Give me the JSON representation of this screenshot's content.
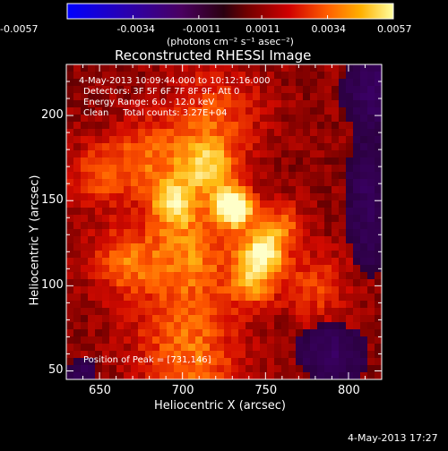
{
  "colorbar": {
    "tick_labels": [
      "-0.0057",
      "-0.0034",
      "-0.0011",
      "0.0011",
      "0.0034",
      "0.0057"
    ],
    "unit_label": "(photons cm⁻² s⁻¹ asec⁻²)",
    "range": [
      -0.0057,
      0.0057
    ]
  },
  "plot": {
    "title": "Reconstructed RHESSI Image",
    "xlabel": "Heliocentric X (arcsec)",
    "ylabel": "Heliocentric Y (arcsec)",
    "x_range": [
      630,
      820
    ],
    "y_range": [
      45,
      230
    ],
    "x_ticks": [
      "650",
      "700",
      "750",
      "800"
    ],
    "y_ticks": [
      "50",
      "100",
      "150",
      "200"
    ],
    "overlay_lines": [
      "4-May-2013 10:09:44.000 to 10:12:16.000",
      "Detectors: 3F 5F 6F 7F 8F 9F, Att 0",
      "Energy Range: 6.0 - 12.0 keV",
      "Clean     Total counts: 3.27E+04"
    ],
    "peak_text": "Position of Peak = [731,146]",
    "peak": [
      731,
      146
    ]
  },
  "footer": {
    "timestamp": "4-May-2013 17:27"
  },
  "colors": {
    "background": "#000000",
    "text": "#ffffff"
  }
}
